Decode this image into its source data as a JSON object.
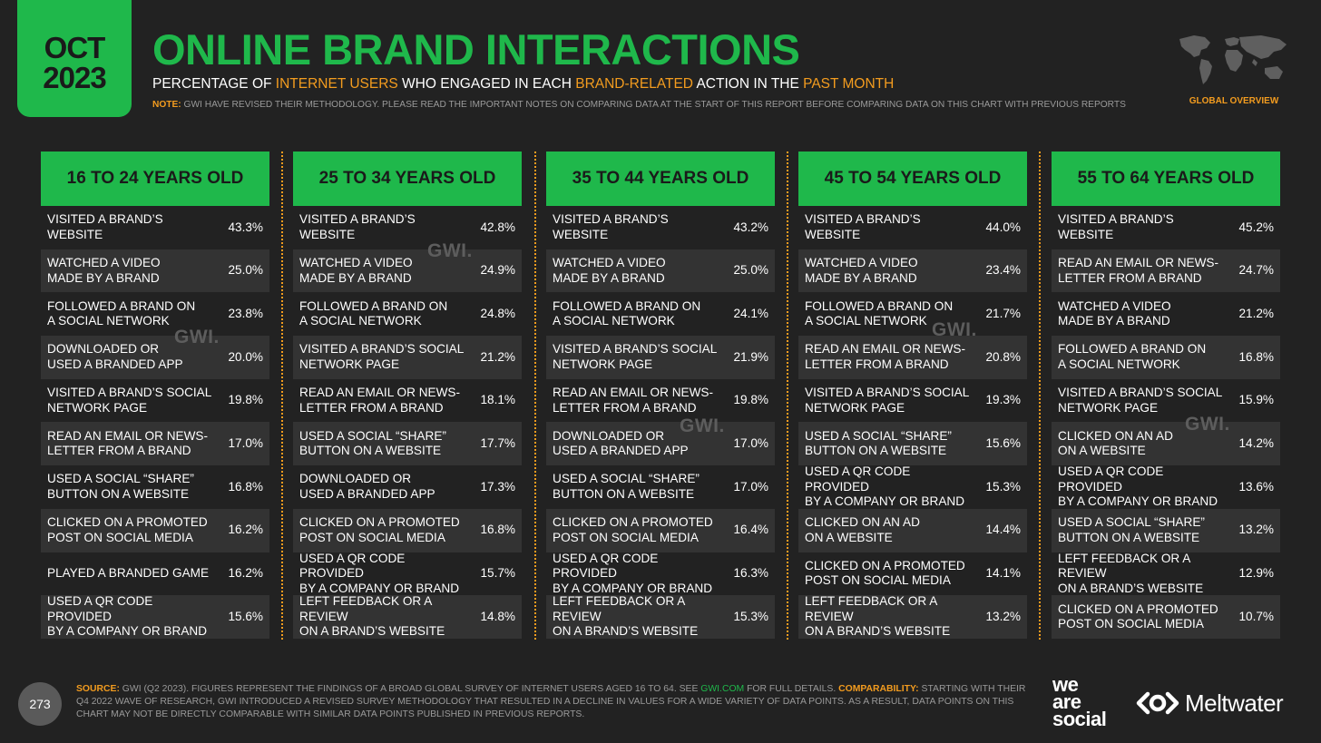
{
  "header": {
    "month": "OCT",
    "year": "2023",
    "title": "ONLINE BRAND INTERACTIONS",
    "subtitle_parts": [
      "PERCENTAGE OF ",
      "INTERNET USERS",
      " WHO ENGAGED IN EACH ",
      "BRAND-RELATED",
      " ACTION IN THE ",
      "PAST MONTH"
    ],
    "note_label": "NOTE:",
    "note_text": " GWI HAVE REVISED THEIR METHODOLOGY. PLEASE READ THE IMPORTANT NOTES ON COMPARING DATA AT THE START OF THIS REPORT BEFORE COMPARING DATA ON THIS CHART WITH PREVIOUS REPORTS",
    "region_label": "GLOBAL OVERVIEW"
  },
  "watermark": "GWI.",
  "colors": {
    "accent": "#1fb84b",
    "highlight": "#f39c1f",
    "background": "#222222",
    "row_alt": "#333333"
  },
  "chart_data": {
    "type": "table",
    "columns": [
      {
        "header": "16 TO 24 YEARS OLD",
        "rows": [
          {
            "label": "VISITED A BRAND’S WEBSITE",
            "value": "43.3%"
          },
          {
            "label": "WATCHED A VIDEO\nMADE BY A BRAND",
            "value": "25.0%"
          },
          {
            "label": "FOLLOWED A BRAND ON\nA SOCIAL NETWORK",
            "value": "23.8%"
          },
          {
            "label": "DOWNLOADED OR\nUSED A BRANDED APP",
            "value": "20.0%"
          },
          {
            "label": "VISITED A BRAND’S SOCIAL\nNETWORK PAGE",
            "value": "19.8%"
          },
          {
            "label": "READ AN EMAIL OR NEWS-\nLETTER FROM A BRAND",
            "value": "17.0%"
          },
          {
            "label": "USED A SOCIAL “SHARE”\nBUTTON ON A WEBSITE",
            "value": "16.8%"
          },
          {
            "label": "CLICKED ON A PROMOTED\nPOST ON SOCIAL MEDIA",
            "value": "16.2%"
          },
          {
            "label": "PLAYED A BRANDED GAME",
            "value": "16.2%"
          },
          {
            "label": "USED A QR CODE PROVIDED\nBY A COMPANY OR BRAND",
            "value": "15.6%"
          }
        ]
      },
      {
        "header": "25 TO 34 YEARS OLD",
        "rows": [
          {
            "label": "VISITED A BRAND’S WEBSITE",
            "value": "42.8%"
          },
          {
            "label": "WATCHED A VIDEO\nMADE BY A BRAND",
            "value": "24.9%"
          },
          {
            "label": "FOLLOWED A BRAND ON\nA SOCIAL NETWORK",
            "value": "24.8%"
          },
          {
            "label": "VISITED A BRAND’S SOCIAL\nNETWORK PAGE",
            "value": "21.2%"
          },
          {
            "label": "READ AN EMAIL OR NEWS-\nLETTER FROM A BRAND",
            "value": "18.1%"
          },
          {
            "label": "USED A SOCIAL “SHARE”\nBUTTON ON A WEBSITE",
            "value": "17.7%"
          },
          {
            "label": "DOWNLOADED OR\nUSED A BRANDED APP",
            "value": "17.3%"
          },
          {
            "label": "CLICKED ON A PROMOTED\nPOST ON SOCIAL MEDIA",
            "value": "16.8%"
          },
          {
            "label": "USED A QR CODE PROVIDED\nBY A COMPANY OR BRAND",
            "value": "15.7%"
          },
          {
            "label": "LEFT FEEDBACK OR A REVIEW\nON A BRAND’S WEBSITE",
            "value": "14.8%"
          }
        ]
      },
      {
        "header": "35 TO 44 YEARS OLD",
        "rows": [
          {
            "label": "VISITED A BRAND’S WEBSITE",
            "value": "43.2%"
          },
          {
            "label": "WATCHED A VIDEO\nMADE BY A BRAND",
            "value": "25.0%"
          },
          {
            "label": "FOLLOWED A BRAND ON\nA SOCIAL NETWORK",
            "value": "24.1%"
          },
          {
            "label": "VISITED A BRAND’S SOCIAL\nNETWORK PAGE",
            "value": "21.9%"
          },
          {
            "label": "READ AN EMAIL OR NEWS-\nLETTER FROM A BRAND",
            "value": "19.8%"
          },
          {
            "label": "DOWNLOADED OR\nUSED A BRANDED APP",
            "value": "17.0%"
          },
          {
            "label": "USED A SOCIAL “SHARE”\nBUTTON ON A WEBSITE",
            "value": "17.0%"
          },
          {
            "label": "CLICKED ON A PROMOTED\nPOST ON SOCIAL MEDIA",
            "value": "16.4%"
          },
          {
            "label": "USED A QR CODE PROVIDED\nBY A COMPANY OR BRAND",
            "value": "16.3%"
          },
          {
            "label": "LEFT FEEDBACK OR A REVIEW\nON A BRAND’S WEBSITE",
            "value": "15.3%"
          }
        ]
      },
      {
        "header": "45 TO 54 YEARS OLD",
        "rows": [
          {
            "label": "VISITED A BRAND’S WEBSITE",
            "value": "44.0%"
          },
          {
            "label": "WATCHED A VIDEO\nMADE BY A BRAND",
            "value": "23.4%"
          },
          {
            "label": "FOLLOWED A BRAND ON\nA SOCIAL NETWORK",
            "value": "21.7%"
          },
          {
            "label": "READ AN EMAIL OR NEWS-\nLETTER FROM A BRAND",
            "value": "20.8%"
          },
          {
            "label": "VISITED A BRAND’S SOCIAL\nNETWORK PAGE",
            "value": "19.3%"
          },
          {
            "label": "USED A SOCIAL “SHARE”\nBUTTON ON A WEBSITE",
            "value": "15.6%"
          },
          {
            "label": "USED A QR CODE PROVIDED\nBY A COMPANY OR BRAND",
            "value": "15.3%"
          },
          {
            "label": "CLICKED ON AN AD\nON A WEBSITE",
            "value": "14.4%"
          },
          {
            "label": "CLICKED ON A PROMOTED\nPOST ON SOCIAL MEDIA",
            "value": "14.1%"
          },
          {
            "label": "LEFT FEEDBACK OR A REVIEW\nON A BRAND’S WEBSITE",
            "value": "13.2%"
          }
        ]
      },
      {
        "header": "55 TO 64 YEARS OLD",
        "rows": [
          {
            "label": "VISITED A BRAND’S WEBSITE",
            "value": "45.2%"
          },
          {
            "label": "READ AN EMAIL OR NEWS-\nLETTER FROM A BRAND",
            "value": "24.7%"
          },
          {
            "label": "WATCHED A VIDEO\nMADE BY A BRAND",
            "value": "21.2%"
          },
          {
            "label": "FOLLOWED A BRAND ON\nA SOCIAL NETWORK",
            "value": "16.8%"
          },
          {
            "label": "VISITED A BRAND’S SOCIAL\nNETWORK PAGE",
            "value": "15.9%"
          },
          {
            "label": "CLICKED ON AN AD\nON A WEBSITE",
            "value": "14.2%"
          },
          {
            "label": "USED A QR CODE PROVIDED\nBY A COMPANY OR BRAND",
            "value": "13.6%"
          },
          {
            "label": "USED A SOCIAL “SHARE”\nBUTTON ON A WEBSITE",
            "value": "13.2%"
          },
          {
            "label": "LEFT FEEDBACK OR A REVIEW\nON A BRAND’S WEBSITE",
            "value": "12.9%"
          },
          {
            "label": "CLICKED ON A PROMOTED\nPOST ON SOCIAL MEDIA",
            "value": "10.7%"
          }
        ]
      }
    ]
  },
  "footer": {
    "page_number": "273",
    "source_label": "SOURCE:",
    "source_text": " GWI (Q2 2023). FIGURES REPRESENT THE FINDINGS OF A BROAD GLOBAL SURVEY OF INTERNET USERS AGED 16 TO 64. SEE ",
    "source_link": "GWI.COM",
    "source_text2": " FOR FULL DETAILS. ",
    "comparability_label": "COMPARABILITY:",
    "comparability_text": " STARTING WITH THEIR Q4 2022 WAVE OF RESEARCH, GWI INTRODUCED A REVISED SURVEY METHODOLOGY THAT RESULTED IN A DECLINE IN VALUES FOR A WIDE VARIETY OF DATA POINTS. AS A RESULT, DATA POINTS ON THIS CHART MAY NOT BE DIRECTLY COMPARABLE WITH SIMILAR DATA POINTS PUBLISHED IN PREVIOUS REPORTS.",
    "was_logo_lines": [
      "we",
      "are",
      "social"
    ],
    "meltwater_logo": "Meltwater"
  }
}
